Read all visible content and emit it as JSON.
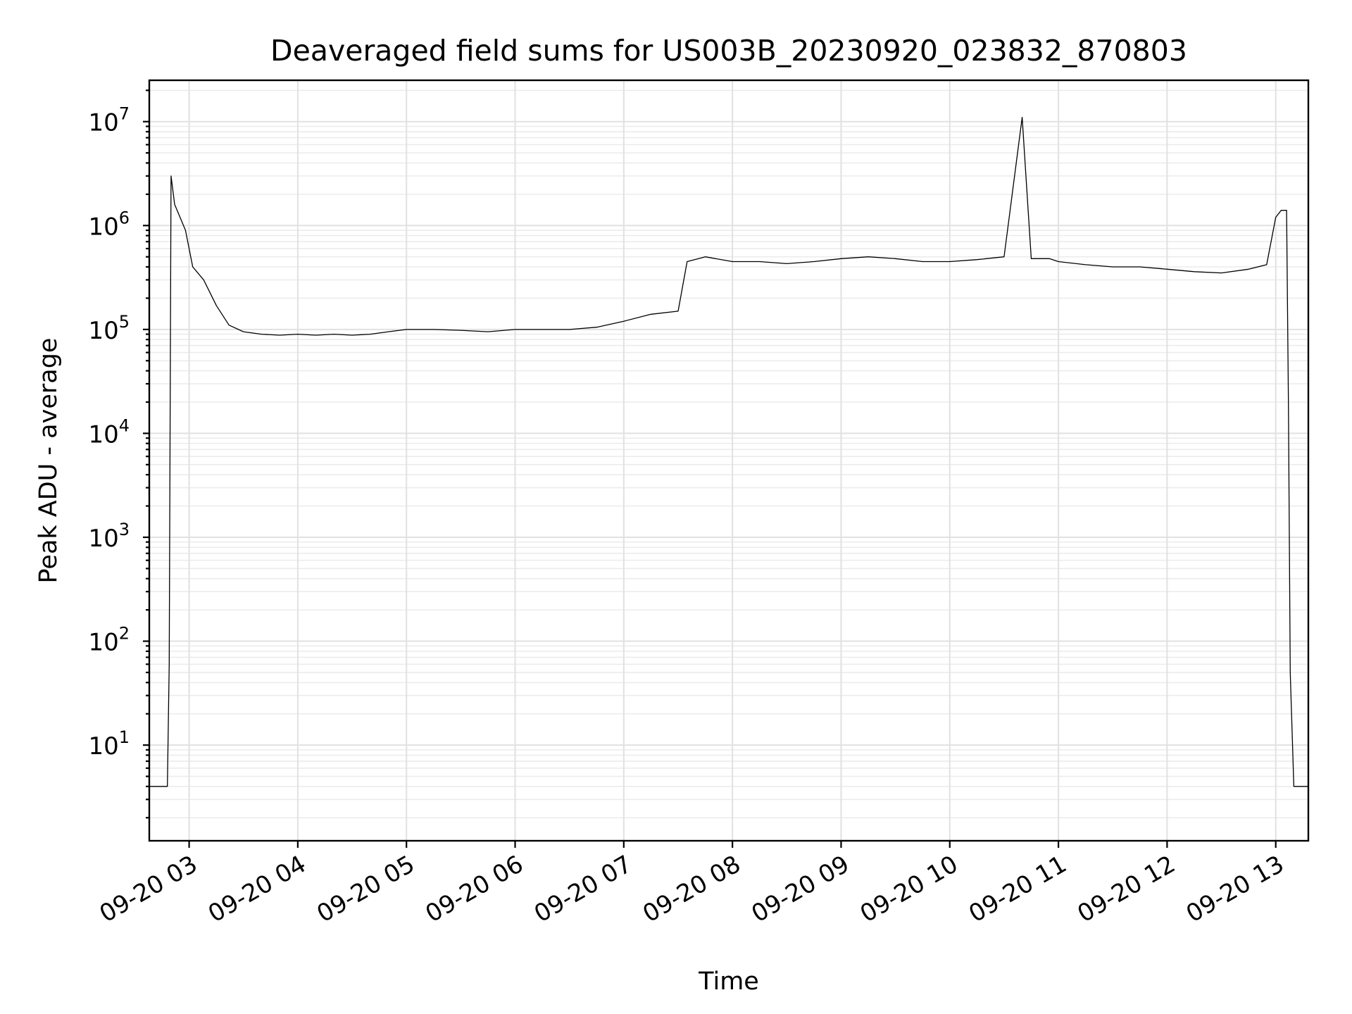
{
  "chart_data": {
    "type": "line",
    "title": "Deaveraged field sums for US003B_20230920_023832_870803",
    "xlabel": "Time",
    "ylabel": "Peak ADU - average",
    "yscale": "log",
    "ylim": [
      1.2,
      25000000
    ],
    "xlim": [
      "2023-09-20 02:38",
      "2023-09-20 13:18"
    ],
    "grid": true,
    "line_color": "#000000",
    "x_ticks": [
      {
        "t": "2023-09-20 03:00",
        "label": "09-20 03"
      },
      {
        "t": "2023-09-20 04:00",
        "label": "09-20 04"
      },
      {
        "t": "2023-09-20 05:00",
        "label": "09-20 05"
      },
      {
        "t": "2023-09-20 06:00",
        "label": "09-20 06"
      },
      {
        "t": "2023-09-20 07:00",
        "label": "09-20 07"
      },
      {
        "t": "2023-09-20 08:00",
        "label": "09-20 08"
      },
      {
        "t": "2023-09-20 09:00",
        "label": "09-20 09"
      },
      {
        "t": "2023-09-20 10:00",
        "label": "09-20 10"
      },
      {
        "t": "2023-09-20 11:00",
        "label": "09-20 11"
      },
      {
        "t": "2023-09-20 12:00",
        "label": "09-20 12"
      },
      {
        "t": "2023-09-20 13:00",
        "label": "09-20 13"
      }
    ],
    "y_ticks": [
      {
        "value": 10,
        "base": "10",
        "exp": "1"
      },
      {
        "value": 100,
        "base": "10",
        "exp": "2"
      },
      {
        "value": 1000,
        "base": "10",
        "exp": "3"
      },
      {
        "value": 10000,
        "base": "10",
        "exp": "4"
      },
      {
        "value": 100000,
        "base": "10",
        "exp": "5"
      },
      {
        "value": 1000000,
        "base": "10",
        "exp": "6"
      },
      {
        "value": 10000000,
        "base": "10",
        "exp": "7"
      }
    ],
    "series": [
      {
        "x": [
          "2023-09-20 02:38",
          "2023-09-20 02:48",
          "2023-09-20 02:49",
          "2023-09-20 02:50",
          "2023-09-20 02:52",
          "2023-09-20 02:55",
          "2023-09-20 02:58",
          "2023-09-20 03:02",
          "2023-09-20 03:08",
          "2023-09-20 03:15",
          "2023-09-20 03:22",
          "2023-09-20 03:30",
          "2023-09-20 03:40",
          "2023-09-20 03:50",
          "2023-09-20 04:00",
          "2023-09-20 04:10",
          "2023-09-20 04:20",
          "2023-09-20 04:30",
          "2023-09-20 04:40",
          "2023-09-20 04:50",
          "2023-09-20 05:00",
          "2023-09-20 05:15",
          "2023-09-20 05:30",
          "2023-09-20 05:45",
          "2023-09-20 06:00",
          "2023-09-20 06:15",
          "2023-09-20 06:30",
          "2023-09-20 06:45",
          "2023-09-20 07:00",
          "2023-09-20 07:15",
          "2023-09-20 07:30",
          "2023-09-20 07:35",
          "2023-09-20 07:45",
          "2023-09-20 08:00",
          "2023-09-20 08:15",
          "2023-09-20 08:30",
          "2023-09-20 08:45",
          "2023-09-20 09:00",
          "2023-09-20 09:15",
          "2023-09-20 09:30",
          "2023-09-20 09:45",
          "2023-09-20 10:00",
          "2023-09-20 10:15",
          "2023-09-20 10:30",
          "2023-09-20 10:40",
          "2023-09-20 10:45",
          "2023-09-20 10:55",
          "2023-09-20 11:00",
          "2023-09-20 11:15",
          "2023-09-20 11:30",
          "2023-09-20 11:45",
          "2023-09-20 12:00",
          "2023-09-20 12:15",
          "2023-09-20 12:30",
          "2023-09-20 12:45",
          "2023-09-20 12:55",
          "2023-09-20 13:00",
          "2023-09-20 13:03",
          "2023-09-20 13:06",
          "2023-09-20 13:07",
          "2023-09-20 13:08",
          "2023-09-20 13:10",
          "2023-09-20 13:18"
        ],
        "y": [
          4,
          4,
          60,
          3000000,
          1600000,
          1200000,
          900000,
          400000,
          300000,
          170000,
          110000,
          95000,
          90000,
          88000,
          90000,
          88000,
          90000,
          88000,
          90000,
          95000,
          100000,
          100000,
          98000,
          95000,
          100000,
          100000,
          100000,
          105000,
          120000,
          140000,
          150000,
          450000,
          500000,
          450000,
          450000,
          430000,
          450000,
          480000,
          500000,
          480000,
          450000,
          450000,
          470000,
          500000,
          11000000,
          480000,
          480000,
          450000,
          420000,
          400000,
          400000,
          380000,
          360000,
          350000,
          380000,
          420000,
          1200000,
          1400000,
          1400000,
          20000,
          50,
          4,
          4
        ]
      }
    ]
  }
}
